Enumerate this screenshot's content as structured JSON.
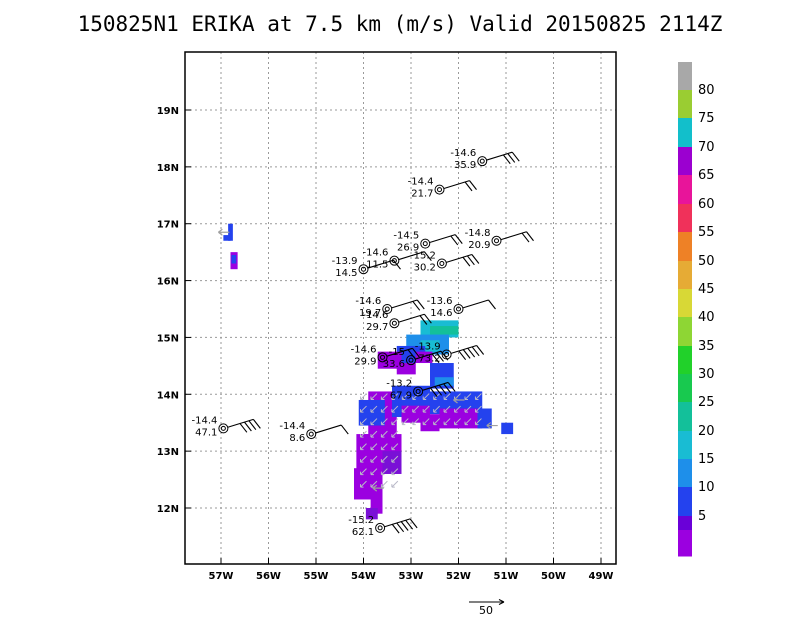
{
  "title": "150825N1 ERIKA at 7.5 km (m/s) Valid 20150825 2114Z",
  "chart_data": {
    "type": "wind barb map",
    "title": "150825N1 ERIKA at 7.5 km (m/s) Valid 20150825 2114Z",
    "x_ticks": [
      "57W",
      "56W",
      "55W",
      "54W",
      "53W",
      "52W",
      "51W",
      "50W",
      "49W"
    ],
    "x_values": [
      -57,
      -56,
      -55,
      -54,
      -53,
      -52,
      -51,
      -50,
      -49
    ],
    "y_ticks": [
      "12N",
      "13N",
      "14N",
      "15N",
      "16N",
      "17N",
      "18N",
      "19N"
    ],
    "y_values": [
      12,
      13,
      14,
      15,
      16,
      17,
      18,
      19
    ],
    "xlim": [
      -57.75,
      -48.8
    ],
    "ylim": [
      11.1,
      20.0
    ],
    "grid": "dotted",
    "colorbar": {
      "labels": [
        "5",
        "10",
        "15",
        "20",
        "25",
        "30",
        "35",
        "40",
        "45",
        "50",
        "55",
        "60",
        "65",
        "70",
        "75",
        "80"
      ],
      "colors": [
        "#9b00e0",
        "#6a00d8",
        "#2442ee",
        "#1e8fea",
        "#19bcd3",
        "#13c09a",
        "#18c94f",
        "#21d12a",
        "#8ed634",
        "#d8d836",
        "#e6ab35",
        "#ee8126",
        "#f2582c",
        "#f0315a",
        "#e8149a",
        "#9b00d0",
        "#12bfcb",
        "#9acd32",
        "#a8a8a8"
      ]
    },
    "observations": [
      {
        "lon": -51.5,
        "lat": 18.1,
        "temp": "-14.6",
        "speed": "35.9"
      },
      {
        "lon": -52.4,
        "lat": 17.6,
        "temp": "-14.4",
        "speed": "21.7"
      },
      {
        "lon": -52.7,
        "lat": 16.65,
        "temp": "-14.5",
        "speed": "26.9"
      },
      {
        "lon": -51.2,
        "lat": 16.7,
        "temp": "-14.8",
        "speed": "20.9"
      },
      {
        "lon": -53.35,
        "lat": 16.35,
        "temp": "-14.6",
        "speed": "11.5"
      },
      {
        "lon": -54.0,
        "lat": 16.2,
        "temp": "-13.9",
        "speed": "14.5"
      },
      {
        "lon": -52.35,
        "lat": 16.3,
        "temp": "-15.2",
        "speed": "30.2"
      },
      {
        "lon": -53.5,
        "lat": 15.5,
        "temp": "-14.6",
        "speed": "19.7"
      },
      {
        "lon": -52.0,
        "lat": 15.5,
        "temp": "-13.6",
        "speed": "14.6"
      },
      {
        "lon": -53.35,
        "lat": 15.25,
        "temp": "-14.6",
        "speed": "29.7"
      },
      {
        "lon": -53.6,
        "lat": 14.65,
        "temp": "-14.6",
        "speed": "29.9"
      },
      {
        "lon": -53.0,
        "lat": 14.6,
        "temp": "-15",
        "speed": "33.6"
      },
      {
        "lon": -52.25,
        "lat": 14.7,
        "temp": "-13.9",
        "speed": "73.2"
      },
      {
        "lon": -52.85,
        "lat": 14.05,
        "temp": "-13.2",
        "speed": "67.9"
      },
      {
        "lon": -56.95,
        "lat": 13.4,
        "temp": "-14.4",
        "speed": "47.1"
      },
      {
        "lon": -55.1,
        "lat": 13.3,
        "temp": "-14.4",
        "speed": "8.6"
      },
      {
        "lon": -53.65,
        "lat": 11.65,
        "temp": "-15.2",
        "speed": "62.1"
      }
    ],
    "reference_vector": {
      "label": "50"
    }
  }
}
